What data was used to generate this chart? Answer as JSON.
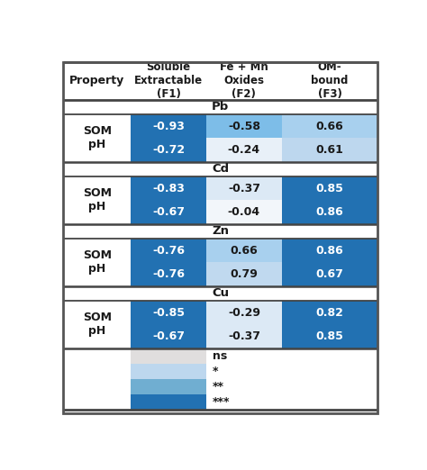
{
  "title_cols": [
    "Property",
    "Soluble\nExtractable\n(F1)",
    "Fe + Mn\nOxides\n(F2)",
    "OM-\nbound\n(F3)"
  ],
  "sections": [
    {
      "label": "Pb",
      "rows": [
        {
          "prop": "SOM",
          "f1": "-0.93",
          "f2": "-0.58",
          "f3": "0.66",
          "c1": "#2271b2",
          "c2": "#7dbde8",
          "c3": "#a8d0ee",
          "t1": "white",
          "t2": "#1a1a1a",
          "t3": "#1a1a1a"
        },
        {
          "prop": "pH",
          "f1": "-0.72",
          "f2": "-0.24",
          "f3": "0.61",
          "c1": "#2271b2",
          "c2": "#e8f0f8",
          "c3": "#bdd7ee",
          "t1": "white",
          "t2": "#1a1a1a",
          "t3": "#1a1a1a"
        }
      ]
    },
    {
      "label": "Cd",
      "rows": [
        {
          "prop": "SOM",
          "f1": "-0.83",
          "f2": "-0.37",
          "f3": "0.85",
          "c1": "#2271b2",
          "c2": "#dce9f5",
          "c3": "#2271b2",
          "t1": "white",
          "t2": "#1a1a1a",
          "t3": "white"
        },
        {
          "prop": "pH",
          "f1": "-0.67",
          "f2": "-0.04",
          "f3": "0.86",
          "c1": "#2271b2",
          "c2": "#f2f6fa",
          "c3": "#2271b2",
          "t1": "white",
          "t2": "#1a1a1a",
          "t3": "white"
        }
      ]
    },
    {
      "label": "Zn",
      "rows": [
        {
          "prop": "SOM",
          "f1": "-0.76",
          "f2": "0.66",
          "f3": "0.86",
          "c1": "#2271b2",
          "c2": "#a8d0ee",
          "c3": "#2271b2",
          "t1": "white",
          "t2": "#1a1a1a",
          "t3": "white"
        },
        {
          "prop": "pH",
          "f1": "-0.76",
          "f2": "0.79",
          "f3": "0.67",
          "c1": "#2271b2",
          "c2": "#c0d9ef",
          "c3": "#2271b2",
          "t1": "white",
          "t2": "#1a1a1a",
          "t3": "white"
        }
      ]
    },
    {
      "label": "Cu",
      "rows": [
        {
          "prop": "SOM",
          "f1": "-0.85",
          "f2": "-0.29",
          "f3": "0.82",
          "c1": "#2271b2",
          "c2": "#dce9f5",
          "c3": "#2271b2",
          "t1": "white",
          "t2": "#1a1a1a",
          "t3": "white"
        },
        {
          "prop": "pH",
          "f1": "-0.67",
          "f2": "-0.37",
          "f3": "0.85",
          "c1": "#2271b2",
          "c2": "#dce9f5",
          "c3": "#2271b2",
          "t1": "white",
          "t2": "#1a1a1a",
          "t3": "white"
        }
      ]
    }
  ],
  "legend": [
    {
      "color": "#e0dede",
      "label": "ns"
    },
    {
      "color": "#bdd7ee",
      "label": "*"
    },
    {
      "color": "#70aed1",
      "label": "**"
    },
    {
      "color": "#2271b2",
      "label": "***"
    }
  ],
  "bg_color": "#ffffff",
  "border_color": "#555555",
  "text_color": "#1a1a1a"
}
